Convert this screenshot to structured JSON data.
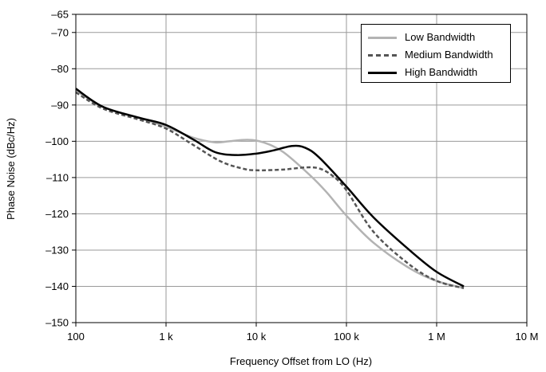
{
  "chart_data": {
    "type": "line",
    "xlabel": "Frequency Offset from LO (Hz)",
    "ylabel": "Phase Noise (dBc/Hz)",
    "x_scale": "log",
    "xlim": [
      100,
      10000000
    ],
    "ylim": [
      -150,
      -65
    ],
    "x_ticks": [
      100,
      1000,
      10000,
      100000,
      1000000,
      10000000
    ],
    "x_tick_labels": [
      "100",
      "1 k",
      "10 k",
      "100 k",
      "1 M",
      "10 M"
    ],
    "y_ticks": [
      -65,
      -70,
      -80,
      -90,
      -100,
      -110,
      -120,
      -130,
      -140,
      -150
    ],
    "y_tick_labels": [
      "–65",
      "–70",
      "–80",
      "–90",
      "–100",
      "–110",
      "–120",
      "–130",
      "–140",
      "–150"
    ],
    "grid": true,
    "legend_position": "top-right",
    "series": [
      {
        "name": "Low Bandwidth",
        "color": "#b3b3b3",
        "dash": "solid",
        "points": [
          [
            100,
            -86
          ],
          [
            200,
            -90.5
          ],
          [
            500,
            -93.5
          ],
          [
            1000,
            -96
          ],
          [
            2000,
            -99
          ],
          [
            3500,
            -100.3
          ],
          [
            5000,
            -100
          ],
          [
            8000,
            -99.6
          ],
          [
            12000,
            -100.3
          ],
          [
            20000,
            -103
          ],
          [
            40000,
            -109.5
          ],
          [
            60000,
            -114
          ],
          [
            100000,
            -120.5
          ],
          [
            200000,
            -128
          ],
          [
            500000,
            -135
          ],
          [
            1000000,
            -138.5
          ],
          [
            2000000,
            -140.5
          ]
        ]
      },
      {
        "name": "Medium Bandwidth",
        "color": "#555555",
        "dash": "dashed",
        "points": [
          [
            100,
            -86.5
          ],
          [
            200,
            -91
          ],
          [
            500,
            -94
          ],
          [
            1000,
            -96.5
          ],
          [
            2000,
            -101
          ],
          [
            4000,
            -105.5
          ],
          [
            7000,
            -107.5
          ],
          [
            10000,
            -108
          ],
          [
            20000,
            -107.8
          ],
          [
            35000,
            -107.2
          ],
          [
            50000,
            -107.5
          ],
          [
            70000,
            -109.5
          ],
          [
            100000,
            -113.5
          ],
          [
            200000,
            -125
          ],
          [
            500000,
            -134
          ],
          [
            1000000,
            -138.5
          ],
          [
            2000000,
            -140.5
          ]
        ]
      },
      {
        "name": "High Bandwidth",
        "color": "#000000",
        "dash": "solid",
        "points": [
          [
            100,
            -85.5
          ],
          [
            200,
            -90.5
          ],
          [
            500,
            -93.5
          ],
          [
            1000,
            -95.5
          ],
          [
            2000,
            -99.5
          ],
          [
            3500,
            -103
          ],
          [
            6000,
            -103.8
          ],
          [
            10000,
            -103.4
          ],
          [
            15000,
            -102.6
          ],
          [
            25000,
            -101.3
          ],
          [
            35000,
            -101.8
          ],
          [
            50000,
            -104.5
          ],
          [
            100000,
            -112.5
          ],
          [
            200000,
            -121
          ],
          [
            500000,
            -130
          ],
          [
            1000000,
            -136
          ],
          [
            2000000,
            -140
          ]
        ]
      }
    ]
  }
}
